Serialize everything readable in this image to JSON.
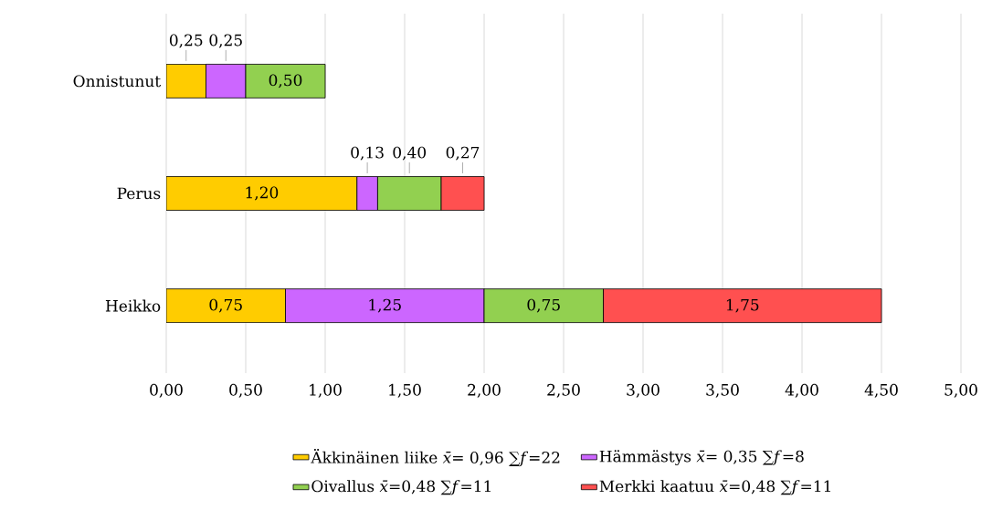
{
  "chart_data": {
    "type": "bar",
    "orientation": "horizontal",
    "stacked": true,
    "categories": [
      "Onnistunut",
      "Perus",
      "Heikko"
    ],
    "series": [
      {
        "name": "Äkkinäinen liike *x̄*= 0,96 ∑*f*=22",
        "color": "#ffcc00",
        "values": [
          0.25,
          1.2,
          0.75
        ],
        "value_labels": [
          "0,25",
          "1,20",
          "0,75"
        ]
      },
      {
        "name": "Hämmästys *x̄*= 0,35 ∑*f*=8",
        "color": "#cc66ff",
        "values": [
          0.25,
          0.13,
          1.25
        ],
        "value_labels": [
          "0,25",
          "0,13",
          "1,25"
        ]
      },
      {
        "name": "Oivallus *x̄*=0,48 ∑*f*=11",
        "color": "#92d050",
        "values": [
          0.5,
          0.4,
          0.75
        ],
        "value_labels": [
          "0,50",
          "0,40",
          "0,75"
        ]
      },
      {
        "name": "Merkki kaatuu *x̄*=0,48 ∑*f*=11",
        "color": "#ff5050",
        "values": [
          null,
          0.27,
          1.75
        ],
        "value_labels": [
          null,
          "0,27",
          "1,75"
        ]
      }
    ],
    "xlim": [
      0,
      5
    ],
    "xticks": [
      {
        "value": 0,
        "label": "0,00"
      },
      {
        "value": 0.5,
        "label": "0,50"
      },
      {
        "value": 1,
        "label": "1,00"
      },
      {
        "value": 1.5,
        "label": "1,50"
      },
      {
        "value": 2,
        "label": "2,00"
      },
      {
        "value": 2.5,
        "label": "2,50"
      },
      {
        "value": 3,
        "label": "3,00"
      },
      {
        "value": 3.5,
        "label": "3,50"
      },
      {
        "value": 4,
        "label": "4,00"
      },
      {
        "value": 4.5,
        "label": "4,50"
      },
      {
        "value": 5,
        "label": "5,00"
      }
    ],
    "grid": "x",
    "legend": "bottom"
  }
}
